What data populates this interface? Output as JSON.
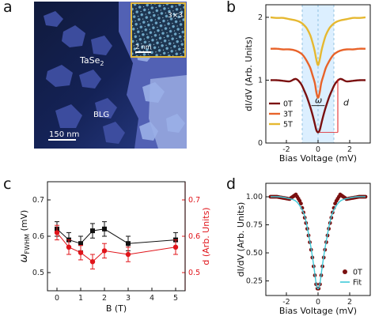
{
  "panels": {
    "a": {
      "label": "a",
      "material_label": "TaSe",
      "material_sub": "2",
      "substrate_label": "BLG",
      "scalebar_label": "150 nm",
      "inset_scalebar_label": "2 nm",
      "inset_reconstruction_label": "3×3"
    },
    "b": {
      "label": "b"
    },
    "c": {
      "label": "c"
    },
    "d": {
      "label": "d"
    }
  },
  "chart_data": [
    {
      "panel": "b",
      "type": "line",
      "xlabel": "Bias Voltage (mV)",
      "ylabel": "dI/dV (Arb. Units)",
      "xlim": [
        -3.3,
        3.3
      ],
      "ylim": [
        0,
        2.2
      ],
      "xticks": [
        -2,
        0,
        2
      ],
      "yticks": [
        0,
        1,
        2
      ],
      "shaded_region": [
        -1,
        1
      ],
      "shaded_color": "#dcefff",
      "annotations": {
        "width": "ω",
        "depth": "d"
      },
      "series": [
        {
          "name": "0T",
          "color": "#7a1010",
          "x": [
            -3,
            -2.6,
            -2.2,
            -1.8,
            -1.4,
            -1.1,
            -0.9,
            -0.7,
            -0.5,
            -0.35,
            -0.2,
            -0.1,
            0,
            0.1,
            0.2,
            0.35,
            0.5,
            0.7,
            0.9,
            1.1,
            1.4,
            1.8,
            2.2,
            2.6,
            3
          ],
          "y": [
            1.0,
            1.0,
            0.99,
            0.98,
            1.02,
            0.95,
            0.85,
            0.73,
            0.58,
            0.45,
            0.3,
            0.2,
            0.17,
            0.2,
            0.3,
            0.45,
            0.58,
            0.73,
            0.85,
            0.95,
            1.02,
            0.98,
            0.99,
            1.0,
            1.0
          ]
        },
        {
          "name": "3T",
          "color": "#e8632a",
          "x": [
            -3,
            -2.6,
            -2.2,
            -1.8,
            -1.4,
            -1.1,
            -0.9,
            -0.7,
            -0.5,
            -0.35,
            -0.2,
            -0.1,
            0,
            0.1,
            0.2,
            0.35,
            0.5,
            0.7,
            0.9,
            1.1,
            1.4,
            1.8,
            2.2,
            2.6,
            3
          ],
          "y": [
            1.5,
            1.5,
            1.49,
            1.49,
            1.47,
            1.43,
            1.38,
            1.3,
            1.2,
            1.08,
            0.95,
            0.8,
            0.72,
            0.8,
            0.95,
            1.08,
            1.2,
            1.3,
            1.38,
            1.43,
            1.47,
            1.49,
            1.49,
            1.5,
            1.5
          ]
        },
        {
          "name": "5T",
          "color": "#e6b830",
          "x": [
            -3,
            -2.6,
            -2.2,
            -1.8,
            -1.4,
            -1.1,
            -0.9,
            -0.7,
            -0.5,
            -0.35,
            -0.2,
            -0.1,
            0,
            0.1,
            0.2,
            0.35,
            0.5,
            0.7,
            0.9,
            1.1,
            1.4,
            1.8,
            2.2,
            2.6,
            3
          ],
          "y": [
            2.0,
            1.99,
            1.99,
            1.97,
            1.95,
            1.92,
            1.88,
            1.82,
            1.72,
            1.6,
            1.45,
            1.32,
            1.24,
            1.32,
            1.45,
            1.6,
            1.72,
            1.82,
            1.88,
            1.92,
            1.95,
            1.97,
            1.99,
            1.99,
            2.0
          ]
        }
      ]
    },
    {
      "panel": "c",
      "type": "line",
      "xlabel": "B (T)",
      "ylabel_left": "ω",
      "ylabel_left_sub": "FWHM",
      "ylabel_left_unit": " (mV)",
      "ylabel_right": "d (Arb. Units)",
      "xlim": [
        -0.4,
        5.4
      ],
      "ylim_left": [
        0.45,
        0.75
      ],
      "ylim_right": [
        0.45,
        0.75
      ],
      "xticks": [
        0,
        1,
        2,
        3,
        4,
        5
      ],
      "yticks_left": [
        0.5,
        0.6,
        0.7
      ],
      "yticks_right": [
        0.5,
        0.6,
        0.7
      ],
      "series": [
        {
          "name": "FWHM",
          "color": "#111111",
          "marker": "square",
          "x": [
            0,
            0.5,
            1,
            1.5,
            2,
            3,
            5
          ],
          "y": [
            0.62,
            0.59,
            0.58,
            0.615,
            0.62,
            0.58,
            0.59
          ],
          "err": [
            0.02,
            0.02,
            0.02,
            0.02,
            0.02,
            0.02,
            0.02
          ]
        },
        {
          "name": "d",
          "color": "#e0141a",
          "marker": "circle",
          "x": [
            0,
            0.5,
            1,
            1.5,
            2,
            3,
            5
          ],
          "y": [
            0.61,
            0.57,
            0.555,
            0.53,
            0.56,
            0.55,
            0.57
          ],
          "err": [
            0.02,
            0.02,
            0.02,
            0.02,
            0.02,
            0.02,
            0.02
          ]
        }
      ]
    },
    {
      "panel": "d",
      "type": "scatter",
      "xlabel": "Bias Voltage (mV)",
      "ylabel": "dI/dV (Arb. Units)",
      "xlim": [
        -3.3,
        3.3
      ],
      "ylim": [
        0.12,
        1.12
      ],
      "xticks": [
        -2,
        0,
        2
      ],
      "yticks": [
        0.25,
        0.5,
        0.75,
        1.0
      ],
      "ytick_labels": [
        "0.25",
        "0.50",
        "0.75",
        "1.00"
      ],
      "series": [
        {
          "name": "0T",
          "color": "#7a1010",
          "marker": "circle",
          "x": [
            -3,
            -2.6,
            -2.2,
            -1.8,
            -1.4,
            -1.1,
            -0.9,
            -0.7,
            -0.5,
            -0.35,
            -0.2,
            -0.1,
            0,
            0.1,
            0.2,
            0.35,
            0.5,
            0.7,
            0.9,
            1.1,
            1.4,
            1.8,
            2.2,
            2.6,
            3
          ],
          "y": [
            1.0,
            1.0,
            0.99,
            0.98,
            1.02,
            0.95,
            0.85,
            0.73,
            0.58,
            0.45,
            0.3,
            0.2,
            0.17,
            0.2,
            0.3,
            0.45,
            0.58,
            0.73,
            0.85,
            0.95,
            1.02,
            0.98,
            0.99,
            1.0,
            1.0
          ]
        },
        {
          "name": "Fit",
          "color": "#3fc9d8",
          "marker": "line",
          "x": [
            -3,
            -2.5,
            -2,
            -1.5,
            -1.2,
            -0.9,
            -0.7,
            -0.5,
            -0.35,
            -0.2,
            -0.1,
            0,
            0.1,
            0.2,
            0.35,
            0.5,
            0.7,
            0.9,
            1.2,
            1.5,
            2,
            2.5,
            3
          ],
          "y": [
            1.0,
            1.0,
            0.99,
            0.97,
            0.93,
            0.85,
            0.74,
            0.59,
            0.46,
            0.31,
            0.21,
            0.18,
            0.21,
            0.31,
            0.46,
            0.59,
            0.74,
            0.85,
            0.93,
            0.97,
            0.99,
            1.0,
            1.0
          ]
        }
      ]
    }
  ]
}
